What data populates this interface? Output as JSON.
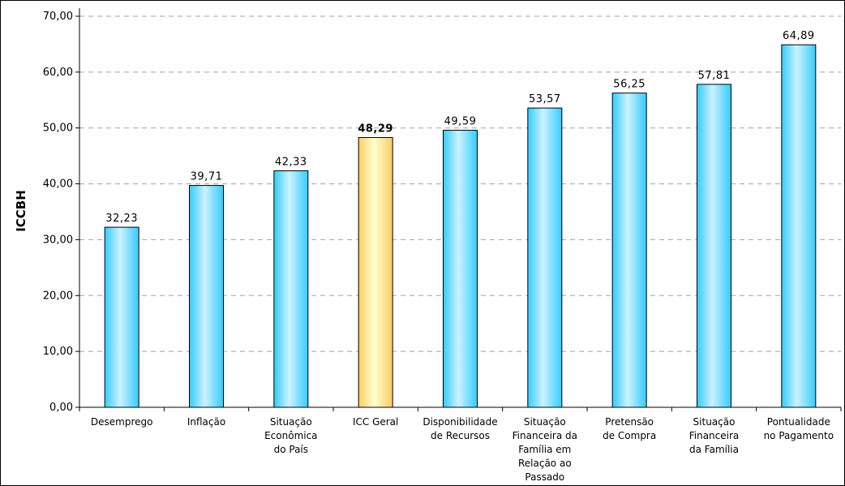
{
  "chart_data": {
    "type": "bar",
    "title": "",
    "xlabel": "",
    "ylabel": "ICCBH",
    "ylim": [
      0,
      70
    ],
    "yticks": [
      "0,00",
      "10,00",
      "20,00",
      "30,00",
      "40,00",
      "50,00",
      "60,00",
      "70,00"
    ],
    "grid": true,
    "categories": [
      [
        "Desemprego"
      ],
      [
        "Inflação"
      ],
      [
        "Situação",
        "Econômica",
        "do País"
      ],
      [
        "ICC Geral"
      ],
      [
        "Disponibilidade",
        "de Recursos"
      ],
      [
        "Situação",
        "Financeira da",
        "Família em",
        "Relação ao",
        "Passado"
      ],
      [
        "Pretensão",
        "de Compra"
      ],
      [
        "Situação",
        "Financeira",
        "da Família"
      ],
      [
        "Pontualidade",
        "no Pagamento"
      ]
    ],
    "values": [
      32.23,
      39.71,
      42.33,
      48.29,
      49.59,
      53.57,
      56.25,
      57.81,
      64.89
    ],
    "value_labels": [
      "32,23",
      "39,71",
      "42,33",
      "48,29",
      "49,59",
      "53,57",
      "56,25",
      "57,81",
      "64,89"
    ],
    "highlight_index": 3,
    "colors": {
      "bar": "#33ccff",
      "bar_light": "#ccf2ff",
      "highlight": "#ffcc66",
      "highlight_light": "#ffffcc",
      "grid": "#a0a0a0"
    }
  }
}
